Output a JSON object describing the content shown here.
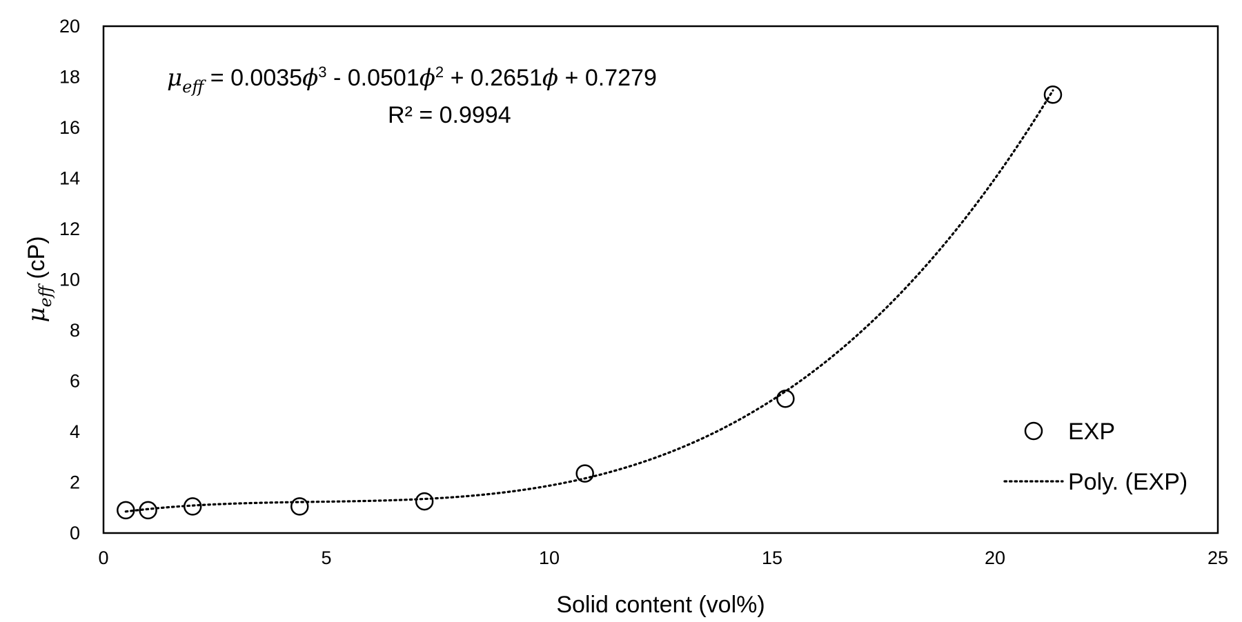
{
  "chart_data": {
    "type": "scatter",
    "xlabel": "Solid content (vol%)",
    "ylabel": {
      "symbol": "μ",
      "sub": "eff",
      "unit": " (cP)"
    },
    "xlim": [
      0,
      25
    ],
    "ylim": [
      0,
      20
    ],
    "x_ticks": [
      0,
      5,
      10,
      15,
      20,
      25
    ],
    "y_ticks": [
      0,
      2,
      4,
      6,
      8,
      10,
      12,
      14,
      16,
      18,
      20
    ],
    "grid": false,
    "legend_position": "bottom-right",
    "series": [
      {
        "name": "EXP",
        "marker": "open-circle",
        "x": [
          0.5,
          1.0,
          2.0,
          4.4,
          7.2,
          10.8,
          15.3,
          21.3
        ],
        "y": [
          0.9,
          0.9,
          1.05,
          1.05,
          1.25,
          2.35,
          5.3,
          17.3
        ]
      }
    ],
    "trendline": {
      "name": "Poly. (EXP)",
      "style": "dotted",
      "type": "polynomial",
      "coefficients": [
        0.7279,
        0.2651,
        -0.0501,
        0.0035
      ],
      "x_range": [
        0.5,
        21.3
      ]
    },
    "annotation": {
      "line1": {
        "lhs_symbol": "μ",
        "lhs_sub": "eff",
        "parts": [
          {
            "t": " = 0.0035"
          },
          {
            "t": "ϕ",
            "i": true
          },
          {
            "t": "3",
            "sup": true
          },
          {
            "t": " - 0.0501"
          },
          {
            "t": "ϕ",
            "i": true
          },
          {
            "t": "2",
            "sup": true
          },
          {
            "t": " + 0.2651"
          },
          {
            "t": "ϕ",
            "i": true
          },
          {
            "t": " + 0.7279"
          }
        ]
      },
      "line2": "R² = 0.9994"
    },
    "colors": {
      "marker_stroke": "#000000",
      "trendline": "#000000",
      "axis": "#000000"
    }
  }
}
